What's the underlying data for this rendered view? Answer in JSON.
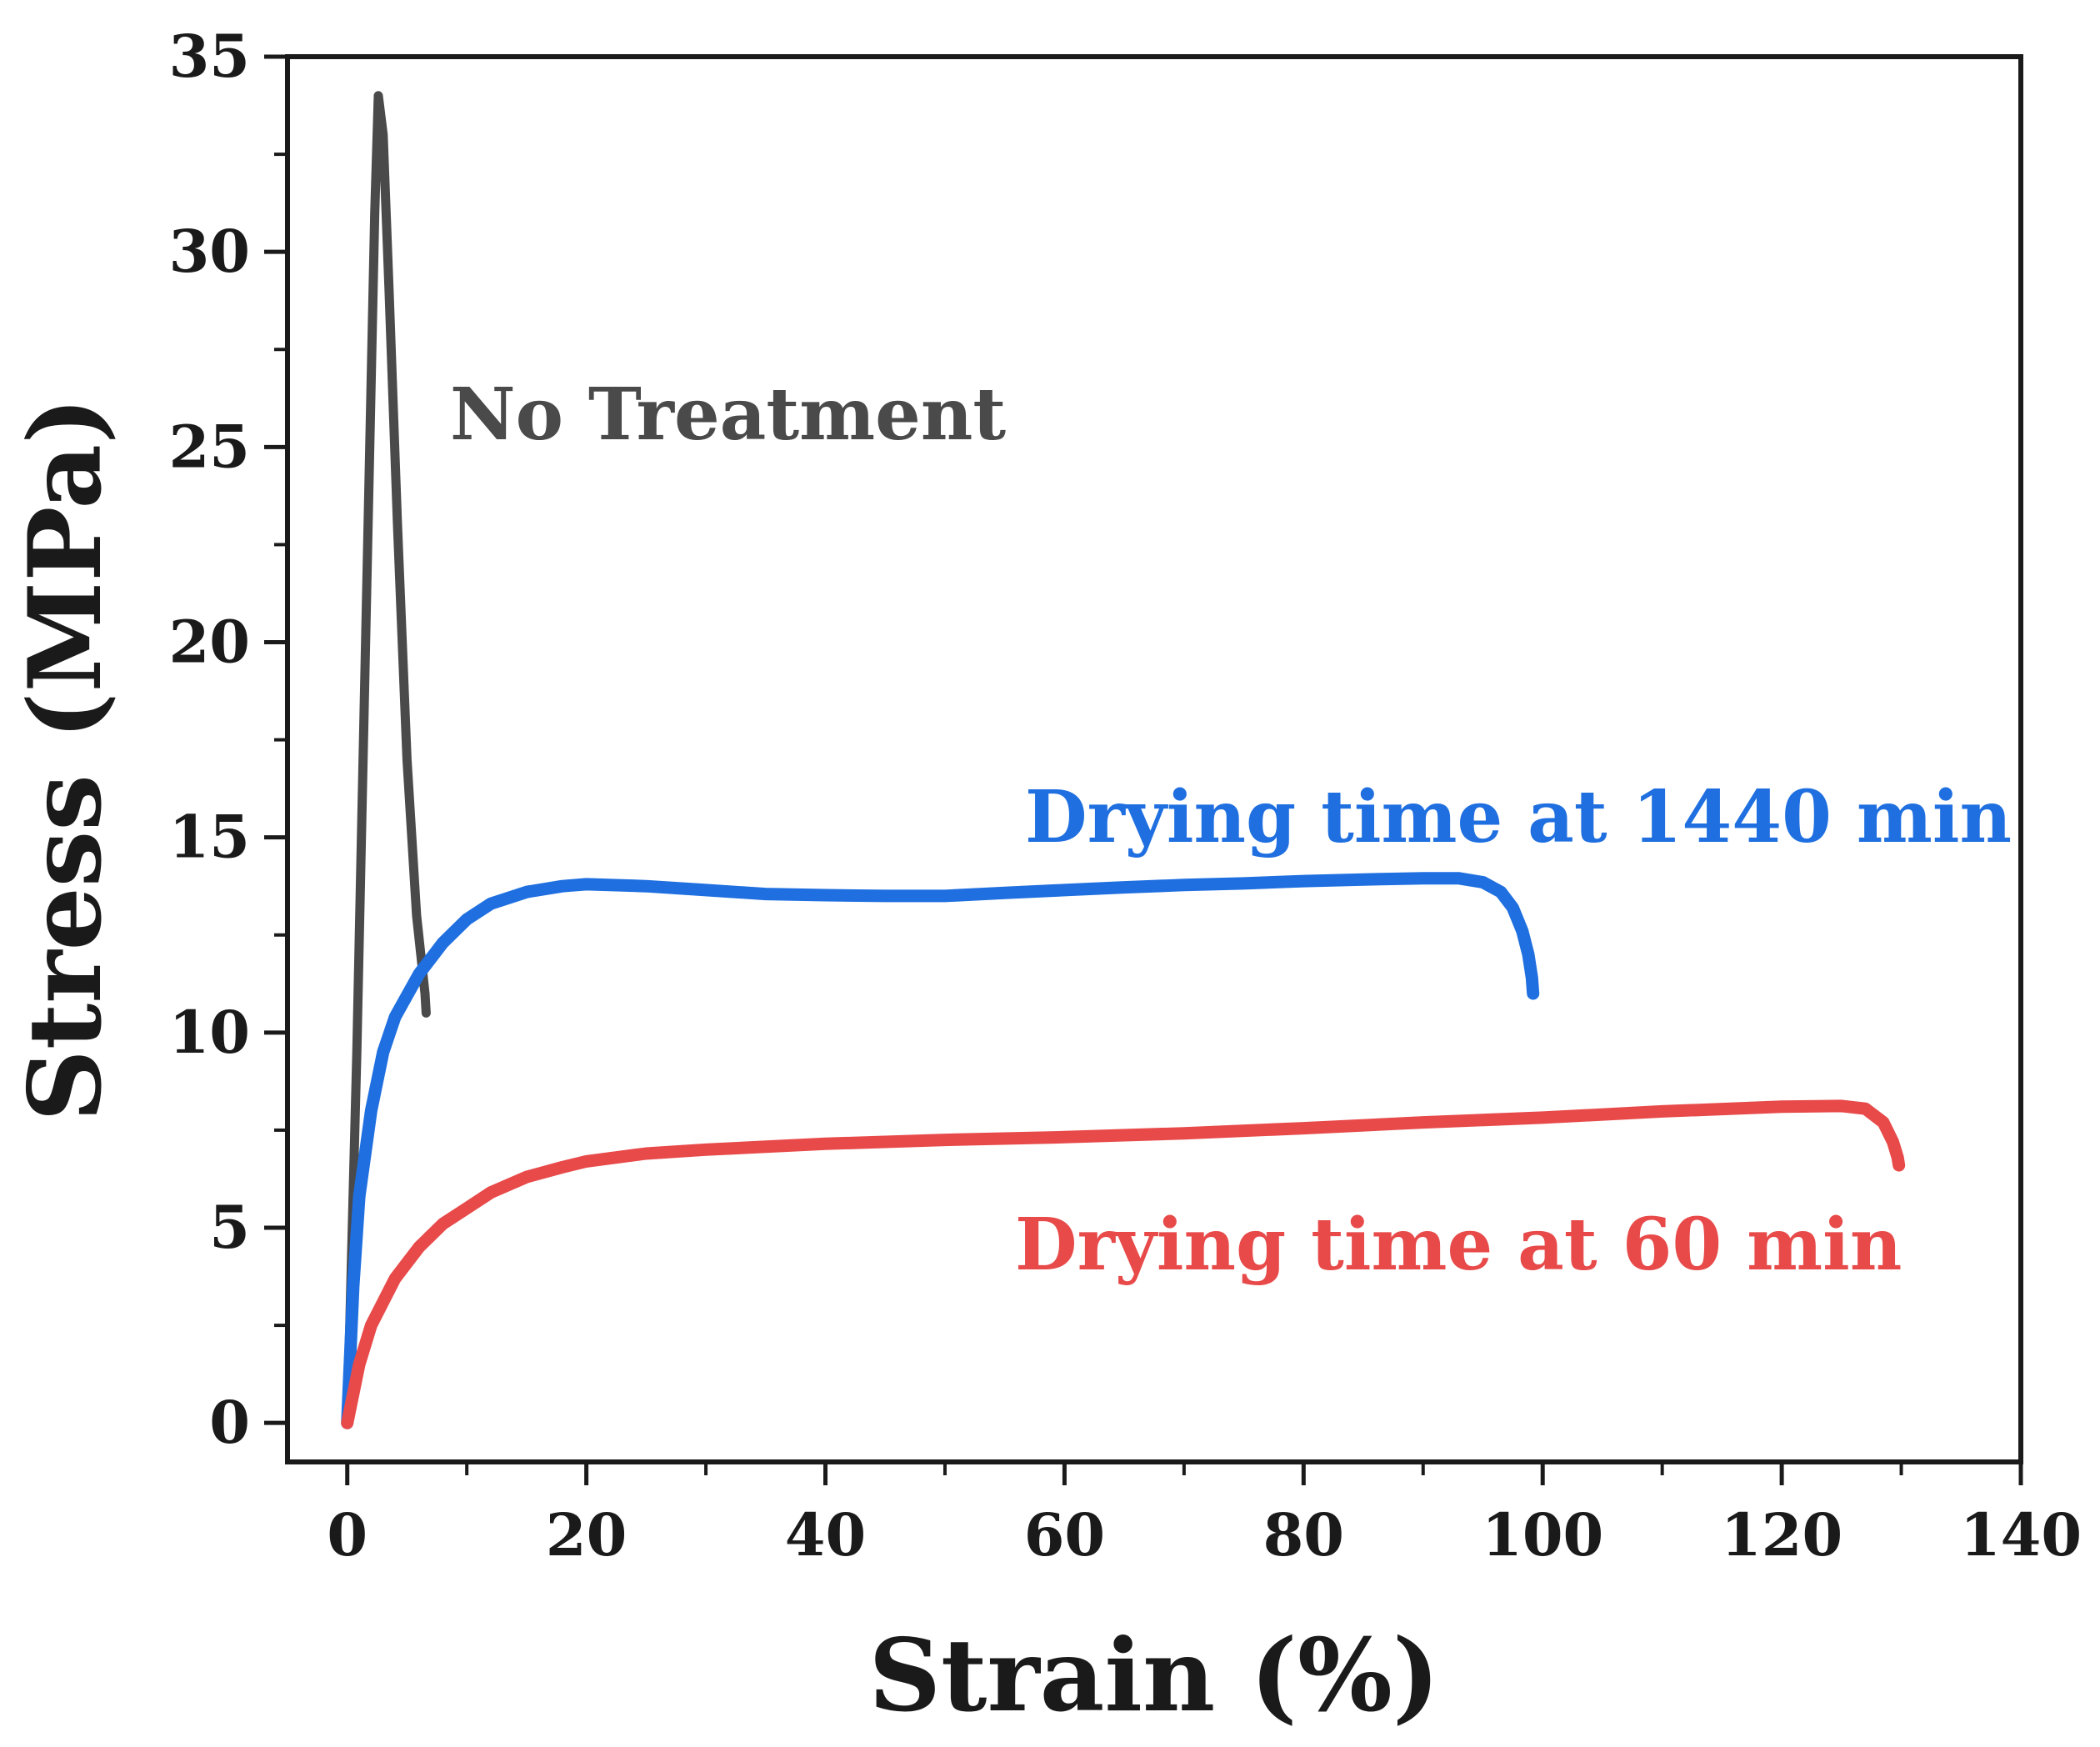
{
  "chart_data": {
    "type": "line",
    "title": "",
    "xlabel": "Strain (%)",
    "ylabel": "Stress (MPa)",
    "xlim": [
      -5,
      140
    ],
    "ylim": [
      -1,
      35
    ],
    "xticks": [
      0,
      20,
      40,
      60,
      80,
      100,
      120,
      140
    ],
    "yticks": [
      0,
      5,
      10,
      15,
      20,
      25,
      30,
      35
    ],
    "grid": false,
    "series": [
      {
        "name": "No Treatment",
        "label": "No Treatment",
        "color": "#4a4a4a",
        "x": [
          0,
          0.8,
          1.6,
          2.3,
          2.6,
          3.0,
          3.5,
          4.2,
          5.0,
          5.8,
          6.5,
          6.6
        ],
        "y": [
          0,
          9.5,
          21,
          31,
          34,
          33,
          29,
          23,
          17,
          13,
          11,
          10.5
        ]
      },
      {
        "name": "Drying time at 1440 min",
        "label": "Drying time at 1440 min",
        "color": "#1f6fe0",
        "x": [
          0,
          0.5,
          1,
          2,
          3,
          4,
          6,
          8,
          10,
          12,
          15,
          18,
          20,
          25,
          30,
          35,
          40,
          45,
          50,
          55,
          60,
          65,
          70,
          75,
          80,
          85,
          90,
          93,
          95,
          96.5,
          97.5,
          98.3,
          98.8,
          99.1,
          99.2
        ],
        "y": [
          0,
          3.5,
          5.8,
          8,
          9.5,
          10.4,
          11.5,
          12.3,
          12.9,
          13.3,
          13.6,
          13.75,
          13.8,
          13.75,
          13.65,
          13.55,
          13.52,
          13.5,
          13.5,
          13.58,
          13.65,
          13.72,
          13.78,
          13.82,
          13.88,
          13.92,
          13.95,
          13.95,
          13.85,
          13.6,
          13.2,
          12.6,
          12,
          11.4,
          11
        ]
      },
      {
        "name": "Drying time at 60 min",
        "label": "Drying time at 60 min",
        "color": "#e84a4a",
        "x": [
          0,
          1,
          2,
          4,
          6,
          8,
          10,
          12,
          15,
          18,
          20,
          25,
          30,
          40,
          50,
          60,
          70,
          80,
          90,
          100,
          110,
          120,
          125,
          127,
          128.5,
          129.3,
          129.7,
          129.8
        ],
        "y": [
          0,
          1.5,
          2.5,
          3.7,
          4.5,
          5.1,
          5.5,
          5.9,
          6.3,
          6.55,
          6.7,
          6.9,
          7.0,
          7.15,
          7.25,
          7.32,
          7.42,
          7.55,
          7.7,
          7.82,
          7.98,
          8.1,
          8.12,
          8.05,
          7.7,
          7.2,
          6.8,
          6.6
        ]
      }
    ]
  }
}
